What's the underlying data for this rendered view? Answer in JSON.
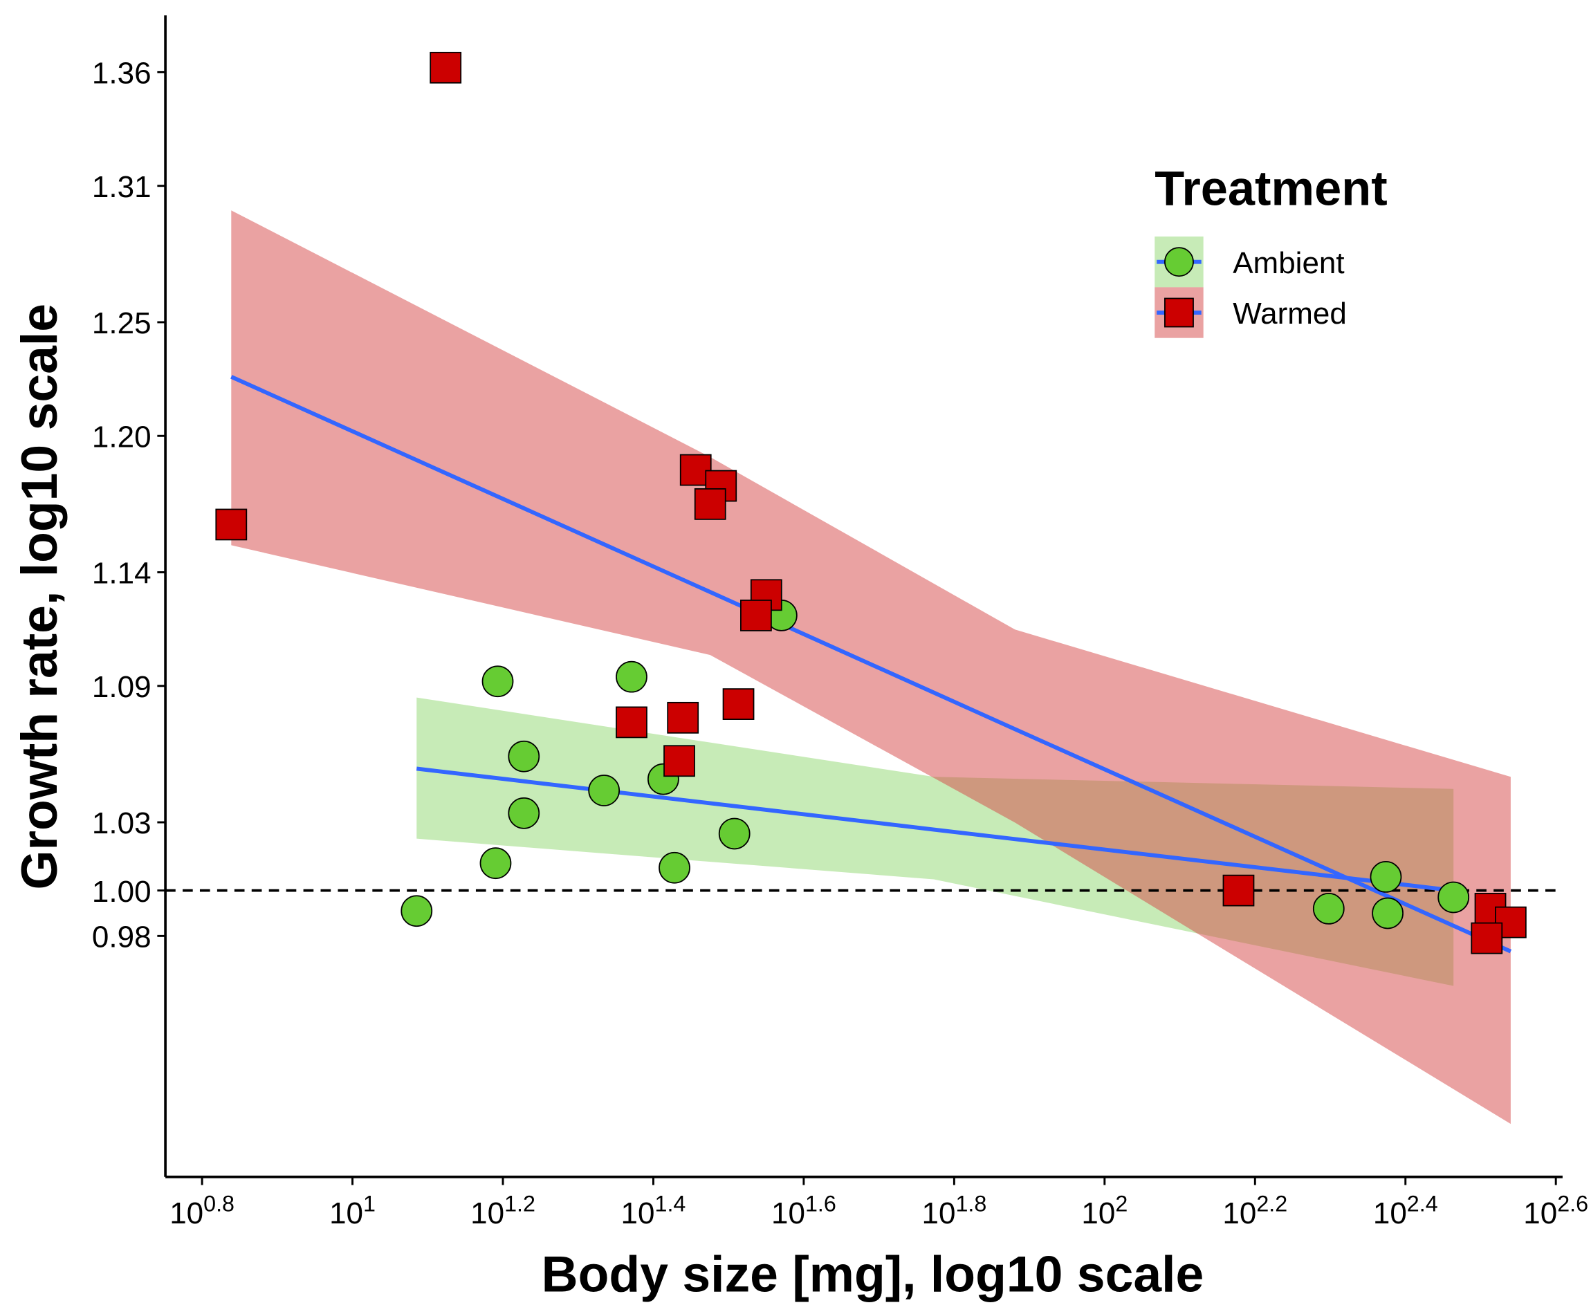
{
  "chart_data": {
    "type": "scatter",
    "xlabel": "Body size [mg], log10 scale",
    "ylabel": "Growth rate, log10 scale",
    "xscale": "log",
    "xlim": [
      5.64,
      406.4
    ],
    "xticks": [
      {
        "value": 6.31,
        "label": "10^0.8"
      },
      {
        "value": 10,
        "label": "10^1"
      },
      {
        "value": 15.85,
        "label": "10^1.2"
      },
      {
        "value": 25.12,
        "label": "10^1.4"
      },
      {
        "value": 39.81,
        "label": "10^1.6"
      },
      {
        "value": 63.1,
        "label": "10^1.8"
      },
      {
        "value": 100,
        "label": "10^2"
      },
      {
        "value": 158.5,
        "label": "10^2.2"
      },
      {
        "value": 251.2,
        "label": "10^2.4"
      },
      {
        "value": 398.1,
        "label": "10^2.6"
      }
    ],
    "ylim": [
      0.874,
      1.385
    ],
    "yticks": [
      {
        "value": 0.98,
        "label": "0.98"
      },
      {
        "value": 1.0,
        "label": "1.00"
      },
      {
        "value": 1.03,
        "label": "1.03"
      },
      {
        "value": 1.09,
        "label": "1.09"
      },
      {
        "value": 1.14,
        "label": "1.14"
      },
      {
        "value": 1.2,
        "label": "1.20"
      },
      {
        "value": 1.25,
        "label": "1.25"
      },
      {
        "value": 1.31,
        "label": "1.31"
      },
      {
        "value": 1.36,
        "label": "1.36"
      }
    ],
    "hline": 1,
    "legend_title": "Treatment",
    "legend_position": "top-right",
    "line_color": "#3366ff",
    "series": [
      {
        "name": "Ambient",
        "color": "#66cc33",
        "band_color": "#8fd870",
        "marker": "circle",
        "x": [
          12.17,
          15.6,
          16.9,
          16.9,
          15.5,
          21.6,
          23.5,
          25.9,
          26.8,
          32.2,
          37.2,
          198.6,
          236.6,
          237.9,
          291.0
        ],
        "values": [
          0.991,
          1.092,
          1.059,
          1.034,
          1.012,
          1.044,
          1.094,
          1.049,
          1.01,
          1.025,
          1.121,
          0.992,
          1.006,
          0.99,
          0.997
        ],
        "fit": {
          "x": [
            12.17,
            59.3,
            291.0
          ],
          "values": [
            1.0536,
            1.0268,
            1.0
          ],
          "lower": [
            1.0228,
            1.0049,
            0.958
          ],
          "upper": [
            1.0849,
            1.05,
            1.0447
          ]
        }
      },
      {
        "name": "Warmed",
        "color": "#cc0000",
        "band_color": "#d64545",
        "marker": "square",
        "x": [
          13.3,
          6.9,
          28.6,
          30.9,
          29.9,
          35.5,
          34.4,
          23.5,
          27.5,
          32.6,
          27.2,
          150.7,
          325.8,
          346.7,
          322.2
        ],
        "values": [
          1.362,
          1.161,
          1.185,
          1.178,
          1.17,
          1.13,
          1.121,
          1.074,
          1.076,
          1.082,
          1.057,
          1.0,
          0.992,
          0.986,
          0.979
        ],
        "fit": {
          "x": [
            6.9,
            29.9,
            76.0,
            346.7
          ],
          "values": [
            1.226,
            1.1313,
            1.071,
            0.9732
          ],
          "lower": [
            1.1519,
            1.1036,
            1.0299,
            0.8973
          ],
          "upper": [
            1.2992,
            1.1907,
            1.1148,
            1.05
          ]
        }
      }
    ]
  }
}
